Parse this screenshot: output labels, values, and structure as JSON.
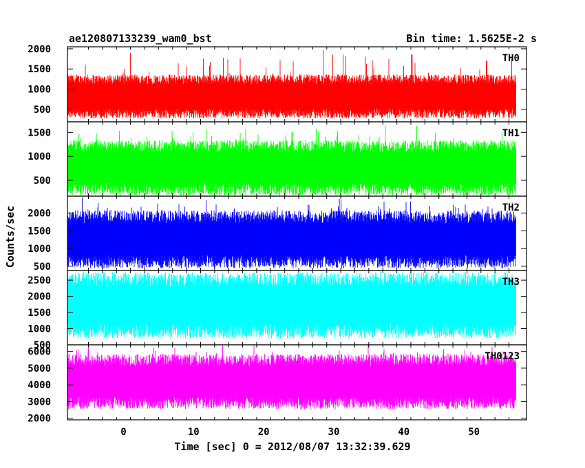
{
  "chart_data": {
    "type": "line",
    "title_left": "ae120807133239_wam0_bst",
    "title_right": "Bin time: 1.5625E-2 s",
    "xlabel": "Time [sec] 0 = 2012/08/07 13:32:39.629",
    "ylabel": "Counts/sec",
    "xlim": [
      -8,
      57.5
    ],
    "x_range": [
      -8,
      56
    ],
    "bin_time": 0.015625,
    "x_ticks": [
      0,
      10,
      20,
      30,
      40,
      50
    ],
    "panels": [
      {
        "name": "TH0",
        "color": "#ff0000",
        "ylim": [
          190,
          2050
        ],
        "y_ticks": [
          500,
          1000,
          1500,
          2000
        ],
        "mean": 820,
        "low": 290,
        "high": 1380,
        "burst_peak": 2050
      },
      {
        "name": "TH1",
        "color": "#00ff00",
        "ylim": [
          170,
          1720
        ],
        "y_ticks": [
          500,
          1000,
          1500
        ],
        "mean": 760,
        "low": 250,
        "high": 1400,
        "burst_peak": 1720
      },
      {
        "name": "TH2",
        "color": "#0000ff",
        "ylim": [
          380,
          2480
        ],
        "y_ticks": [
          500,
          1000,
          1500,
          2000
        ],
        "mean": 1260,
        "low": 460,
        "high": 2100,
        "burst_peak": 2480
      },
      {
        "name": "TH3",
        "color": "#00ffff",
        "ylim": [
          500,
          2800
        ],
        "y_ticks": [
          500,
          1000,
          1500,
          2000,
          2500
        ],
        "mean": 1720,
        "low": 700,
        "high": 2750,
        "burst_peak": 2800
      },
      {
        "name": "TH0123",
        "color": "#ff00ff",
        "ylim": [
          1900,
          6400
        ],
        "y_ticks": [
          2000,
          3000,
          4000,
          5000,
          6000
        ],
        "mean": 4200,
        "low": 2500,
        "high": 5800,
        "burst_peak": 6400
      }
    ]
  }
}
